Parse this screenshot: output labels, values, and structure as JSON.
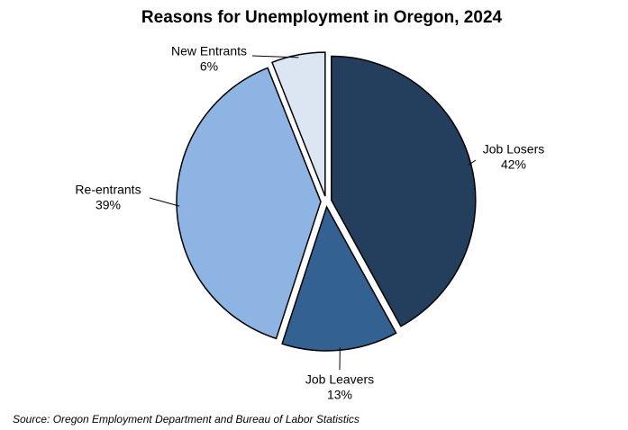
{
  "chart_data": {
    "type": "pie",
    "title": "Reasons for Unemployment in Oregon, 2024",
    "categories": [
      "Job Losers",
      "Job Leavers",
      "Re-entrants",
      "New Entrants"
    ],
    "values": [
      42,
      13,
      39,
      6
    ],
    "value_labels": [
      "42%",
      "13%",
      "39%",
      "6%"
    ],
    "colors": [
      "#243f5e",
      "#336192",
      "#8db4e2",
      "#dce6f2"
    ],
    "source": "Source: Oregon Employment Department and Bureau of Labor Statistics"
  }
}
